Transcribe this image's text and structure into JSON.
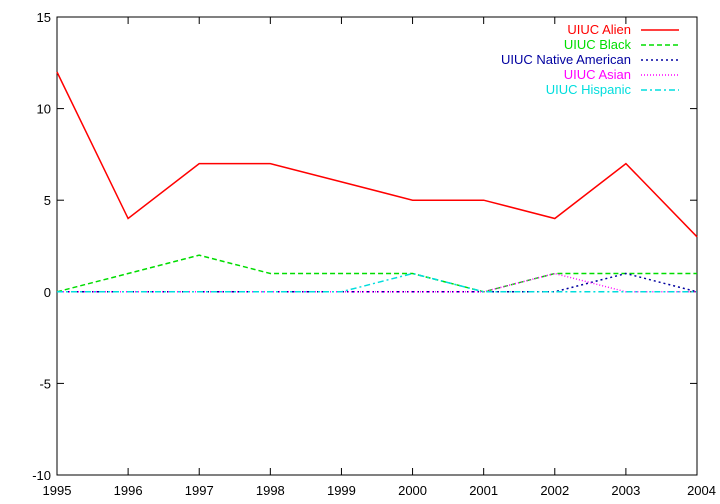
{
  "chart_data": {
    "type": "line",
    "title": "",
    "xlabel": "",
    "ylabel": "",
    "xlim": [
      1995,
      2004
    ],
    "ylim": [
      -10,
      15
    ],
    "x": [
      1995,
      1996,
      1997,
      1998,
      1999,
      2000,
      2001,
      2002,
      2003,
      2004
    ],
    "x_ticks": [
      "1995",
      "1996",
      "1997",
      "1998",
      "1999",
      "2000",
      "2001",
      "2002",
      "2003",
      "2004"
    ],
    "y_ticks": [
      "-10",
      "-5",
      "0",
      "5",
      "10",
      "15"
    ],
    "grid": false,
    "legend_position": "top-right",
    "series": [
      {
        "name": "UIUC Alien",
        "color": "#ff0000",
        "dash": "solid",
        "values": [
          12,
          4,
          7,
          7,
          6,
          5,
          5,
          4,
          7,
          3
        ]
      },
      {
        "name": "UIUC Black",
        "color": "#00dd00",
        "dash": "dashed",
        "values": [
          0,
          1,
          2,
          1,
          1,
          1,
          0,
          1,
          1,
          1
        ]
      },
      {
        "name": "UIUC Native American",
        "color": "#0000a0",
        "dash": "dotted",
        "values": [
          0,
          0,
          0,
          0,
          0,
          0,
          0,
          0,
          1,
          0
        ]
      },
      {
        "name": "UIUC Asian",
        "color": "#ff00ff",
        "dash": "fine-dotted",
        "values": [
          0,
          0,
          0,
          0,
          0,
          0,
          0,
          1,
          0,
          0
        ]
      },
      {
        "name": "UIUC Hispanic",
        "color": "#00dddd",
        "dash": "dash-dot",
        "values": [
          0,
          0,
          0,
          0,
          0,
          1,
          0,
          0,
          0,
          0
        ]
      }
    ]
  }
}
